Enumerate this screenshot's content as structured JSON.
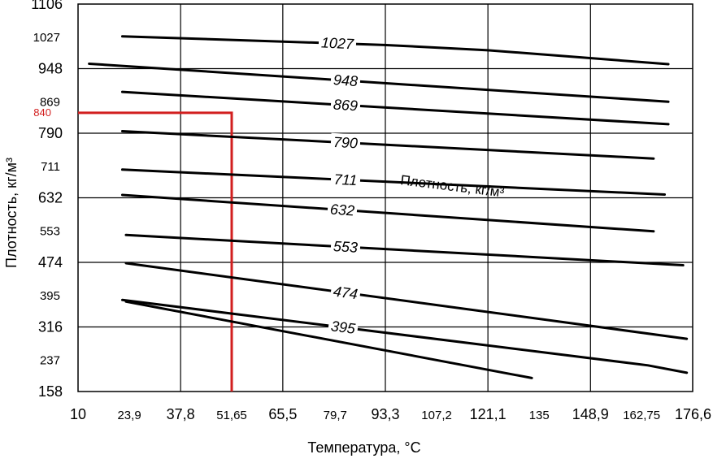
{
  "chart_data": {
    "type": "line",
    "title": "",
    "xlabel": "Температура, °С",
    "ylabel": "Плотность, кг/м³",
    "annotation": "Плотность, кг/м³",
    "x_ticks": [
      "10",
      "23,9",
      "37,8",
      "51,65",
      "65,5",
      "79,7",
      "93,3",
      "107,2",
      "121,1",
      "135",
      "148,9",
      "162,75",
      "176,6"
    ],
    "y_ticks": [
      "158",
      "237",
      "316",
      "395",
      "474",
      "553",
      "632",
      "711",
      "790",
      "869",
      "948",
      "1027",
      "1106"
    ],
    "y_highlight_tick": "840",
    "xlim": [
      10,
      176.6
    ],
    "ylim": [
      158,
      1106
    ],
    "grid": true,
    "series": [
      {
        "name": "1027",
        "x": [
          22,
          93,
          121.1,
          170
        ],
        "y": [
          1027,
          1006,
          993,
          959
        ]
      },
      {
        "name": "948",
        "x": [
          13,
          170
        ],
        "y": [
          960,
          867
        ]
      },
      {
        "name": "869",
        "x": [
          22,
          170
        ],
        "y": [
          891,
          812
        ]
      },
      {
        "name": "790",
        "x": [
          22,
          166
        ],
        "y": [
          795,
          728
        ]
      },
      {
        "name": "711",
        "x": [
          22,
          169
        ],
        "y": [
          701,
          640
        ]
      },
      {
        "name": "632",
        "x": [
          22,
          166
        ],
        "y": [
          639,
          550
        ]
      },
      {
        "name": "553",
        "x": [
          23,
          174
        ],
        "y": [
          541,
          467
        ]
      },
      {
        "name": "474",
        "x": [
          23,
          175
        ],
        "y": [
          472,
          287
        ]
      },
      {
        "name": "395",
        "x": [
          22,
          164.5,
          175
        ],
        "y": [
          382,
          222,
          204
        ]
      },
      {
        "name": "",
        "x": [
          23,
          133
        ],
        "y": [
          378,
          191
        ]
      }
    ],
    "highlight": {
      "density": 840,
      "temperature": 51.65,
      "color": "#d21f1f"
    }
  }
}
